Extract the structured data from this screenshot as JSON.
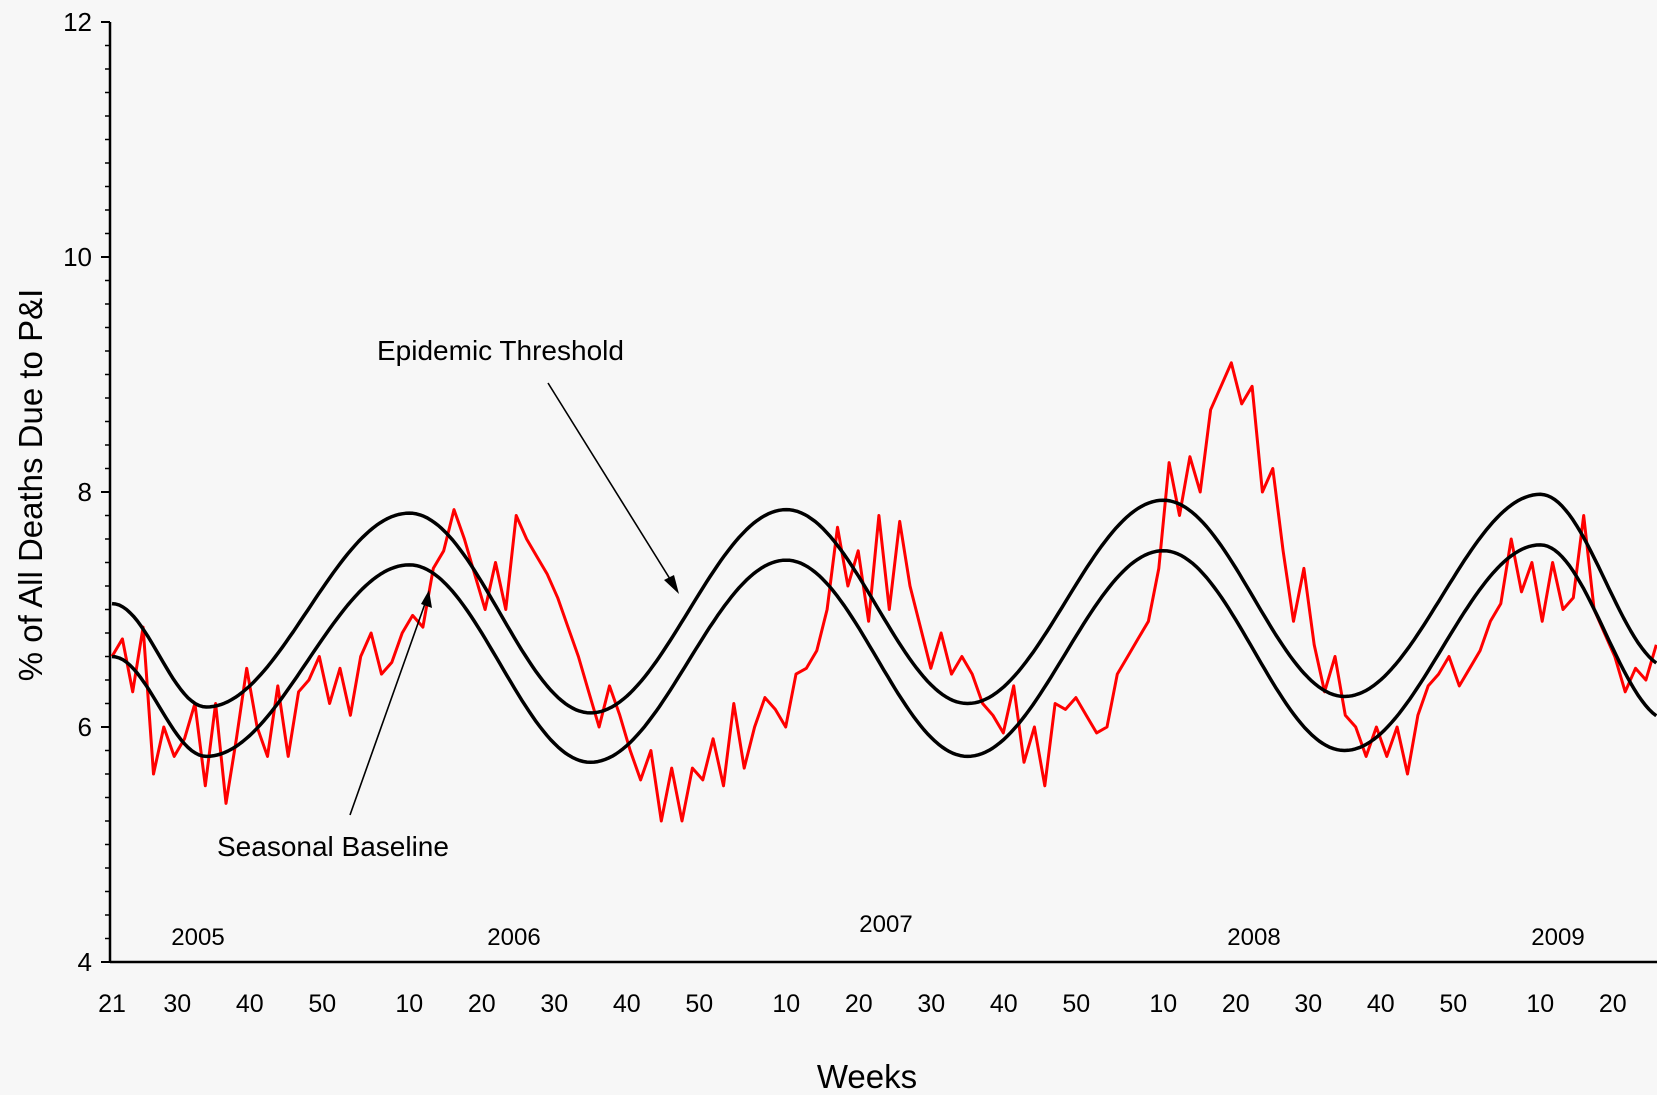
{
  "chart_data": {
    "type": "line",
    "title": "",
    "xlabel": "Weeks",
    "ylabel": "% of All Deaths Due to P&I",
    "ylim": [
      4,
      12
    ],
    "yticks": [
      "4",
      "6",
      "8",
      "10",
      "12"
    ],
    "x_week_labels": [
      "21",
      "30",
      "40",
      "50",
      "10",
      "20",
      "30",
      "40",
      "50",
      "10",
      "20",
      "30",
      "40",
      "50",
      "10",
      "20",
      "30",
      "40",
      "50",
      "10",
      "20"
    ],
    "year_labels": [
      "2005",
      "2006",
      "2007",
      "2008",
      "2009"
    ],
    "annotations": [
      "Epidemic Threshold",
      "Seasonal Baseline"
    ],
    "grid": false,
    "legend": "none",
    "colors": {
      "observed": "#ff0000",
      "baseline": "#000000",
      "threshold": "#000000"
    },
    "x_range": [
      "2005 week 21",
      "2009 week 27"
    ],
    "series": [
      {
        "name": "Epidemic Threshold",
        "x": [
          "2005 wk21",
          "2005 wk34",
          "2006 wk9",
          "2006 wk34",
          "2007 wk9",
          "2007 wk34",
          "2008 wk9",
          "2008 wk34",
          "2009 wk9",
          "2009 wk27"
        ],
        "values": [
          7.05,
          6.17,
          7.82,
          6.12,
          7.85,
          6.2,
          7.93,
          6.26,
          7.98,
          6.5
        ]
      },
      {
        "name": "Seasonal Baseline",
        "x": [
          "2005 wk21",
          "2005 wk34",
          "2006 wk9",
          "2006 wk34",
          "2007 wk9",
          "2007 wk34",
          "2008 wk9",
          "2008 wk34",
          "2009 wk9",
          "2009 wk27"
        ],
        "values": [
          6.6,
          5.75,
          7.38,
          5.7,
          7.42,
          5.75,
          7.5,
          5.8,
          7.55,
          6.05
        ]
      },
      {
        "name": "",
        "x_start": "2005 wk21",
        "step": "1 week",
        "values": [
          6.6,
          6.75,
          6.3,
          6.85,
          5.6,
          6.0,
          5.75,
          5.9,
          6.2,
          5.5,
          6.2,
          5.35,
          5.9,
          6.5,
          6.0,
          5.75,
          6.35,
          5.75,
          6.3,
          6.4,
          6.6,
          6.2,
          6.5,
          6.1,
          6.6,
          6.8,
          6.45,
          6.55,
          6.8,
          6.95,
          6.85,
          7.35,
          7.5,
          7.85,
          7.6,
          7.3,
          7.0,
          7.4,
          7.0,
          7.8,
          7.6,
          7.45,
          7.3,
          7.1,
          6.85,
          6.6,
          6.3,
          6.0,
          6.35,
          6.1,
          5.8,
          5.55,
          5.8,
          5.2,
          5.65,
          5.2,
          5.65,
          5.55,
          5.9,
          5.5,
          6.2,
          5.65,
          6.0,
          6.25,
          6.15,
          6.0,
          6.45,
          6.5,
          6.65,
          7.0,
          7.7,
          7.2,
          7.5,
          6.9,
          7.8,
          7.0,
          7.75,
          7.2,
          6.85,
          6.5,
          6.8,
          6.45,
          6.6,
          6.45,
          6.2,
          6.1,
          5.95,
          6.35,
          5.7,
          6.0,
          5.5,
          6.2,
          6.15,
          6.25,
          6.1,
          5.95,
          6.0,
          6.45,
          6.6,
          6.75,
          6.9,
          7.35,
          8.25,
          7.8,
          8.3,
          8.0,
          8.7,
          8.9,
          9.1,
          8.75,
          8.9,
          8.0,
          8.2,
          7.5,
          6.9,
          7.35,
          6.7,
          6.3,
          6.6,
          6.1,
          6.0,
          5.75,
          6.0,
          5.75,
          6.0,
          5.6,
          6.1,
          6.35,
          6.45,
          6.6,
          6.35,
          6.5,
          6.65,
          6.9,
          7.05,
          7.6,
          7.15,
          7.4,
          6.9,
          7.4,
          7.0,
          7.1,
          7.8,
          7.0,
          6.8,
          6.6,
          6.3,
          6.5,
          6.4,
          6.7
        ]
      }
    ]
  }
}
